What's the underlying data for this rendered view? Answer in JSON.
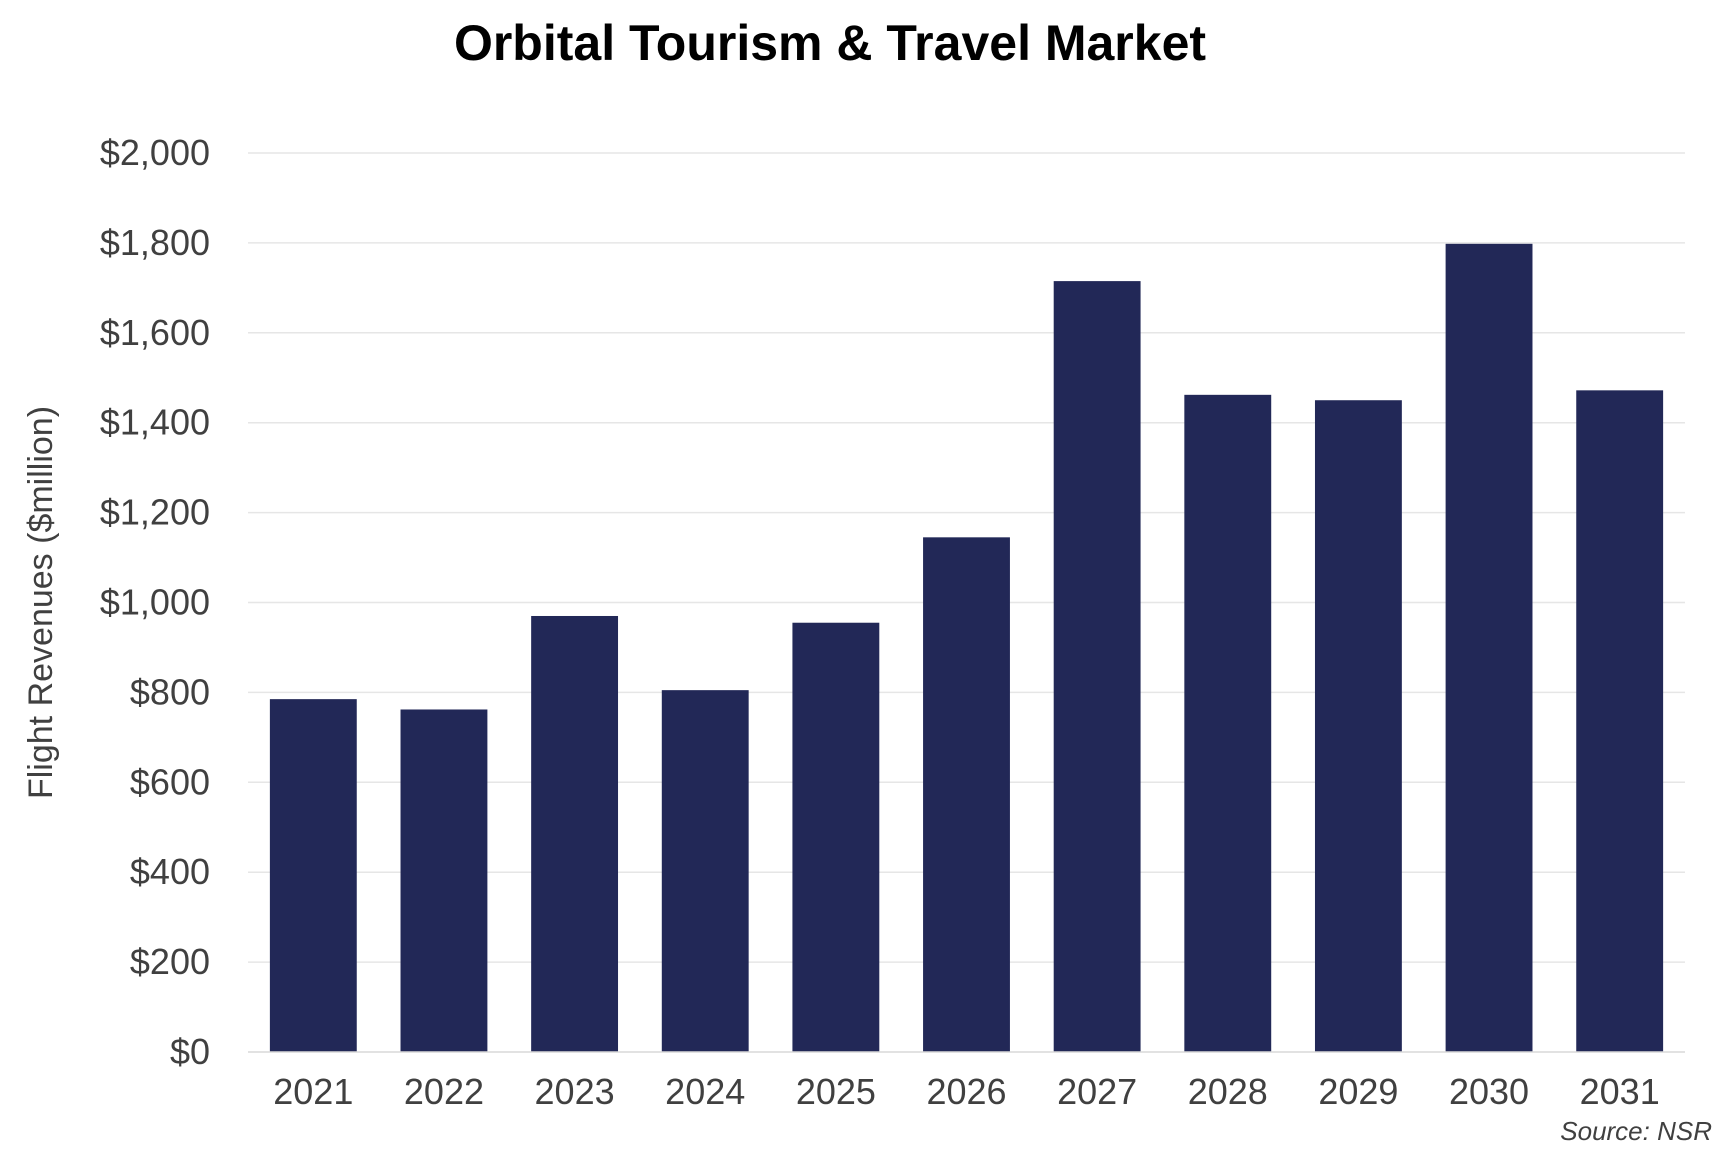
{
  "chart_data": {
    "type": "bar",
    "title": "Orbital Tourism & Travel Market",
    "ylabel": "Flight Revenues ($million)",
    "xlabel": "",
    "categories": [
      "2021",
      "2022",
      "2023",
      "2024",
      "2025",
      "2026",
      "2027",
      "2028",
      "2029",
      "2030",
      "2031"
    ],
    "values": [
      785,
      762,
      970,
      805,
      955,
      1145,
      1715,
      1462,
      1450,
      1798,
      1472
    ],
    "ylim": [
      0,
      2000
    ],
    "yticks": [
      0,
      200,
      400,
      600,
      800,
      1000,
      1200,
      1400,
      1600,
      1800,
      2000
    ],
    "ytick_labels": [
      "$0",
      "$200",
      "$400",
      "$600",
      "$800",
      "$1,000",
      "$1,200",
      "$1,400",
      "$1,600",
      "$1,800",
      "$2,000"
    ],
    "grid": true,
    "bar_color": "#222857",
    "source": "Source: NSR"
  }
}
